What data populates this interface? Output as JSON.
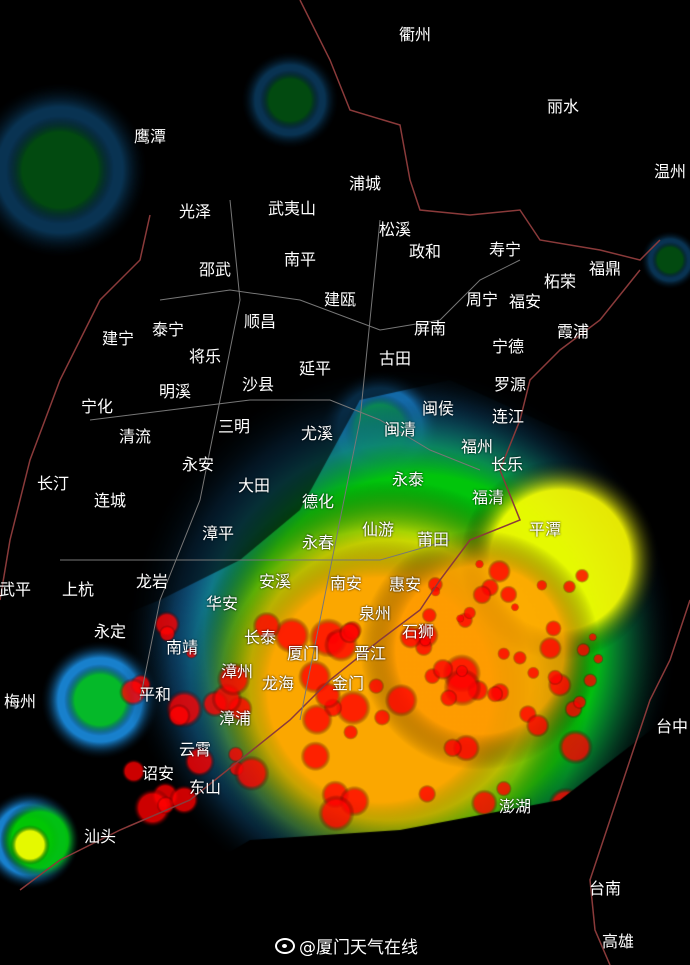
{
  "map": {
    "type": "weather-radar-composite-reflectivity",
    "colors": {
      "background": "#000000",
      "light": "#1ea0ff",
      "low": "#00c800",
      "moderate": "#ffff00",
      "heavy": "#ff9900",
      "intense": "#ff0000",
      "province_border": "#8a3a3a",
      "county_border": "#777777"
    },
    "places": [
      "衢州",
      "丽水",
      "鹰潭",
      "温州",
      "浦城",
      "光泽",
      "武夷山",
      "松溪",
      "政和",
      "寿宁",
      "柘荣",
      "福鼎",
      "邵武",
      "南平",
      "建瓯",
      "周宁",
      "福安",
      "泰宁",
      "顺昌",
      "屏南",
      "霞浦",
      "建宁",
      "将乐",
      "延平",
      "古田",
      "宁德",
      "沙县",
      "明溪",
      "罗源",
      "宁化",
      "闽侯",
      "连江",
      "三明",
      "尤溪",
      "闽清",
      "福州",
      "清流",
      "长乐",
      "永安",
      "长汀",
      "大田",
      "永泰",
      "连城",
      "德化",
      "福清",
      "平潭",
      "仙游",
      "莆田",
      "漳平",
      "永春",
      "安溪",
      "南安",
      "惠安",
      "龙岩",
      "武平",
      "上杭",
      "华安",
      "泉州",
      "石狮",
      "永定",
      "南靖",
      "长泰",
      "厦门",
      "晋江",
      "漳州",
      "龙海",
      "金门",
      "梅州",
      "平和",
      "漳浦",
      "台中",
      "云霄",
      "诏安",
      "东山",
      "澎湖",
      "汕头",
      "台南",
      "高雄"
    ]
  },
  "watermark": {
    "text": "@厦门天气在线",
    "icon": "weibo-icon"
  }
}
